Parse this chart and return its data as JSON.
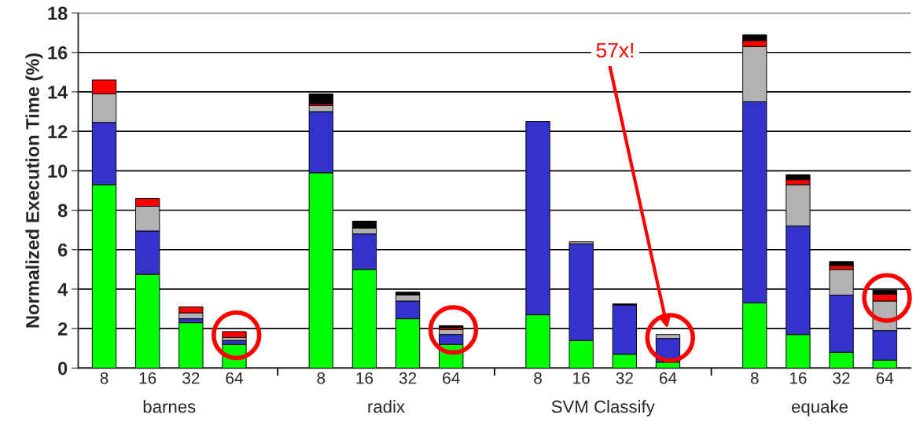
{
  "chart_data": {
    "type": "bar",
    "stacked": true,
    "ylabel": "Normalized Execution Time (%)",
    "categories": [
      "8",
      "16",
      "32",
      "64",
      null,
      "8",
      "16",
      "32",
      "64",
      null,
      "8",
      "16",
      "32",
      "64",
      null,
      "8",
      "16",
      "32",
      "64"
    ],
    "series": [
      {
        "color": "#00ff00",
        "values": [
          9.3,
          4.75,
          2.3,
          1.2,
          null,
          9.9,
          5.0,
          2.5,
          1.2,
          null,
          2.7,
          1.4,
          0.7,
          0.3,
          null,
          3.3,
          1.7,
          0.8,
          0.4
        ]
      },
      {
        "color": "#3333cc",
        "values": [
          3.15,
          2.2,
          0.2,
          0.2,
          null,
          3.1,
          1.8,
          0.9,
          0.5,
          null,
          9.8,
          4.9,
          2.5,
          1.2,
          null,
          10.2,
          5.5,
          2.9,
          1.5
        ]
      },
      {
        "color": "#b2b2b2",
        "values": [
          1.45,
          1.25,
          0.3,
          0.15,
          null,
          0.3,
          0.3,
          0.3,
          0.25,
          null,
          0,
          0.1,
          0,
          0.2,
          null,
          2.8,
          2.1,
          1.3,
          1.5
        ]
      },
      {
        "color": "#ff0000",
        "values": [
          0.7,
          0.4,
          0.3,
          0.3,
          null,
          0.1,
          0,
          0,
          0.1,
          null,
          0,
          0,
          0,
          0,
          null,
          0.3,
          0.25,
          0.2,
          0.35
        ]
      },
      {
        "color": "#000000",
        "values": [
          0,
          0,
          0,
          0,
          null,
          0.5,
          0.35,
          0.15,
          0.1,
          null,
          0,
          0,
          0.05,
          0,
          null,
          0.3,
          0.25,
          0.2,
          0.2
        ]
      }
    ],
    "annotations": [
      "barnes",
      "radix",
      "SVM Classify",
      "equake",
      "57x!"
    ],
    "ylim": [
      0,
      18
    ],
    "yticks": [
      0,
      2,
      4,
      6,
      8,
      10,
      12,
      14,
      16,
      18
    ],
    "grid": "y"
  }
}
